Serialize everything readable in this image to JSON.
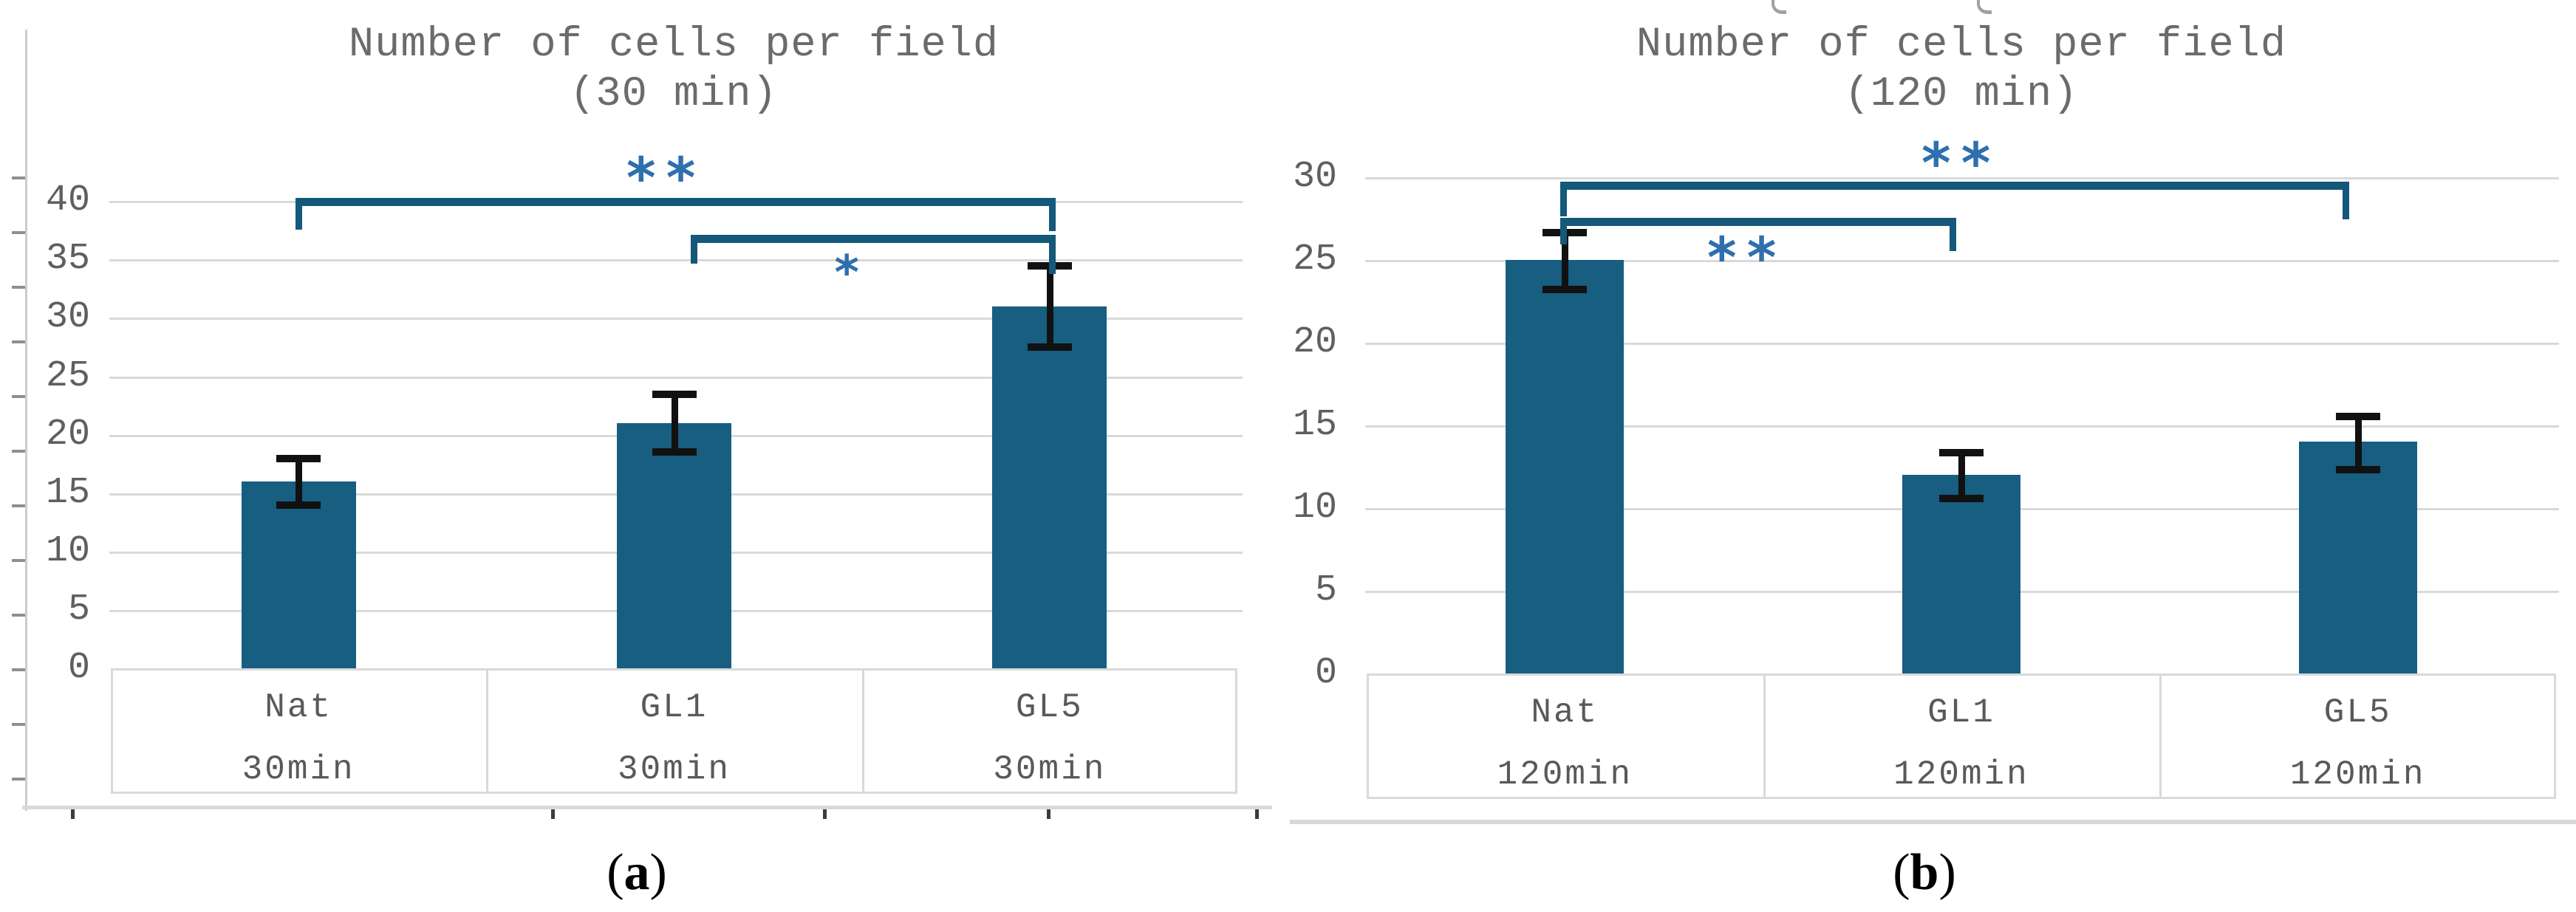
{
  "colors": {
    "bar": "#175e81",
    "bracket": "#14587a",
    "significance": "#2e6fae",
    "grid": "#d9d9d9",
    "title_text": "#6b6b6b",
    "tick_text": "#5f5f5f",
    "category_text": "#595959",
    "error_bar": "#111111",
    "caption_text": "#000000"
  },
  "chart_data": [
    {
      "type": "bar",
      "title": "Number of cells per field",
      "subtitle": "(30 min)",
      "categories": [
        {
          "group": "Nat",
          "time": "30min"
        },
        {
          "group": "GL1",
          "time": "30min"
        },
        {
          "group": "GL5",
          "time": "30min"
        }
      ],
      "values": [
        16,
        21,
        31
      ],
      "error_low": [
        14,
        18.5,
        27.5
      ],
      "error_high": [
        18,
        23.5,
        34.5
      ],
      "ylim": [
        0,
        40
      ],
      "yticks": [
        0,
        5,
        10,
        15,
        20,
        25,
        30,
        35,
        40
      ],
      "grid": true,
      "legend": "none",
      "annotations": [
        {
          "from": "Nat",
          "to": "GL5",
          "label": "**"
        },
        {
          "from": "GL1",
          "to": "GL5",
          "label": "*"
        }
      ],
      "caption": {
        "open": "(",
        "letter": "a",
        "close": ")"
      }
    },
    {
      "type": "bar",
      "title": "Number of cells per field",
      "subtitle": "(120 min)",
      "categories": [
        {
          "group": "Nat",
          "time": "120min"
        },
        {
          "group": "GL1",
          "time": "120min"
        },
        {
          "group": "GL5",
          "time": "120min"
        }
      ],
      "values": [
        25,
        12,
        14
      ],
      "error_low": [
        23.2,
        10.6,
        12.3
      ],
      "error_high": [
        26.7,
        13.4,
        15.6
      ],
      "ylim": [
        0,
        30
      ],
      "yticks": [
        0,
        5,
        10,
        15,
        20,
        25,
        30
      ],
      "grid": true,
      "legend": "none",
      "annotations": [
        {
          "from": "Nat",
          "to": "GL5",
          "label": "**"
        },
        {
          "from": "Nat",
          "to": "GL1",
          "label": "**"
        }
      ],
      "caption": {
        "open": "(",
        "letter": "b",
        "close": ")"
      }
    }
  ]
}
